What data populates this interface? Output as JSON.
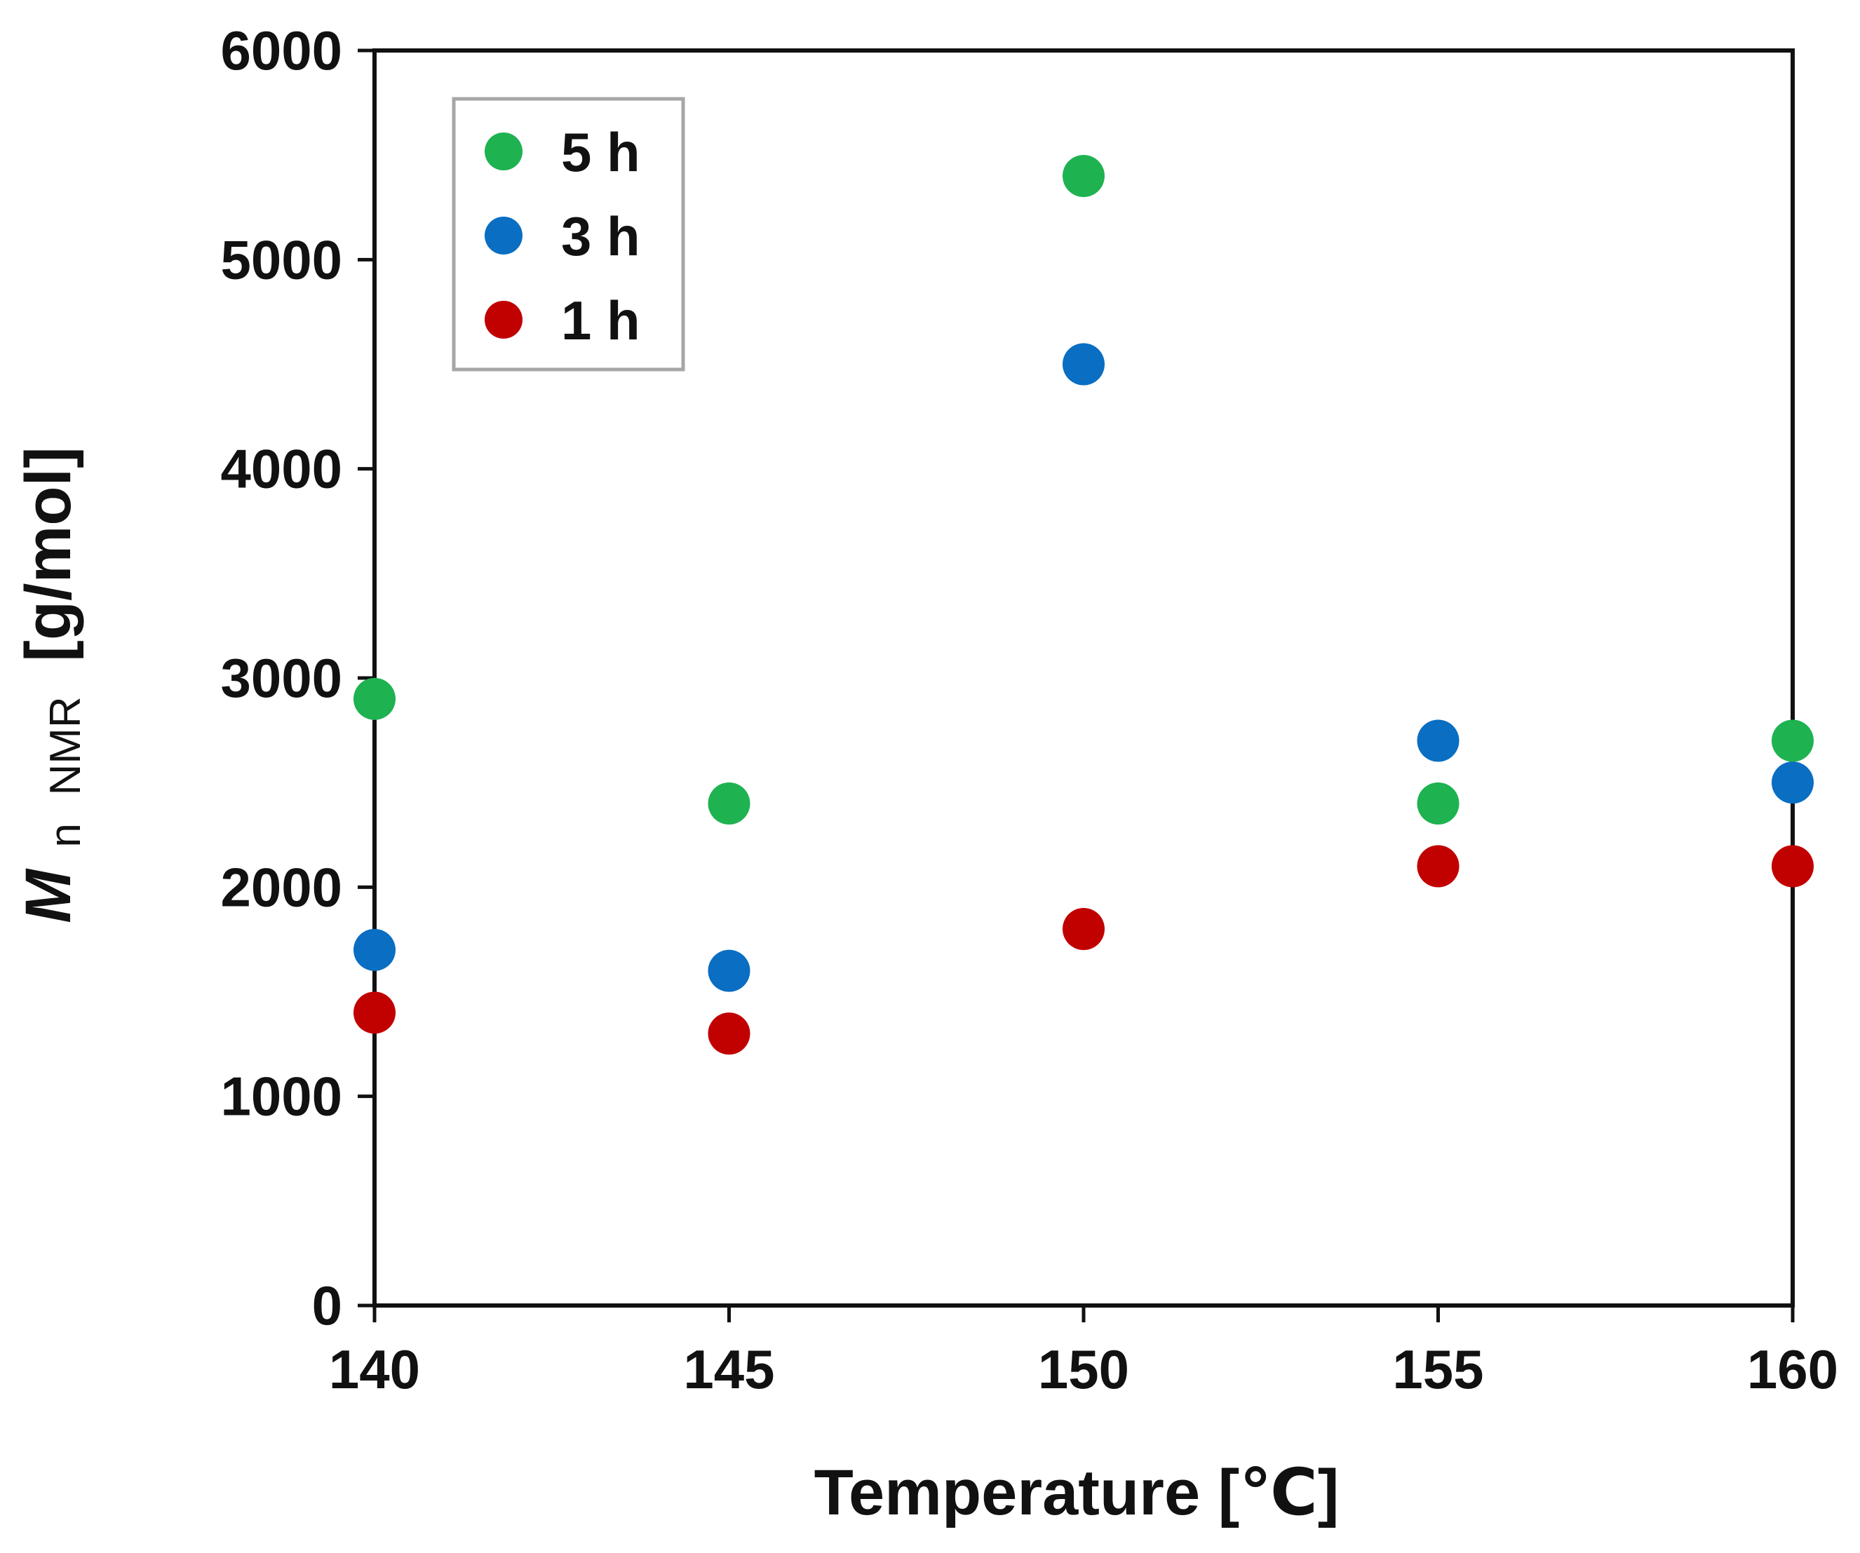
{
  "chart_data": {
    "type": "scatter",
    "title": "",
    "xlabel": "Temperature [℃]",
    "ylabel": {
      "main": "M",
      "sub_n": "n",
      "sub_nmr": "NMR",
      "unit": "[g/mol]"
    },
    "xlim": [
      140,
      160
    ],
    "ylim": [
      0,
      6000
    ],
    "x_ticks": [
      "140",
      "145",
      "150",
      "155",
      "160"
    ],
    "y_ticks": [
      "0",
      "1000",
      "2000",
      "3000",
      "4000",
      "5000",
      "6000"
    ],
    "grid": false,
    "legend_position": "top-left",
    "series": [
      {
        "name": "5 h",
        "color": "#1eb251",
        "x": [
          140,
          145,
          150,
          155,
          160
        ],
        "y": [
          2900,
          2400,
          5400,
          2400,
          2700
        ]
      },
      {
        "name": "3 h",
        "color": "#0a6ec2",
        "x": [
          140,
          145,
          150,
          155,
          160
        ],
        "y": [
          1700,
          1600,
          4500,
          2700,
          2500
        ]
      },
      {
        "name": "1 h",
        "color": "#c10000",
        "x": [
          140,
          145,
          150,
          155,
          160
        ],
        "y": [
          1400,
          1300,
          1800,
          2100,
          2100
        ]
      }
    ]
  }
}
